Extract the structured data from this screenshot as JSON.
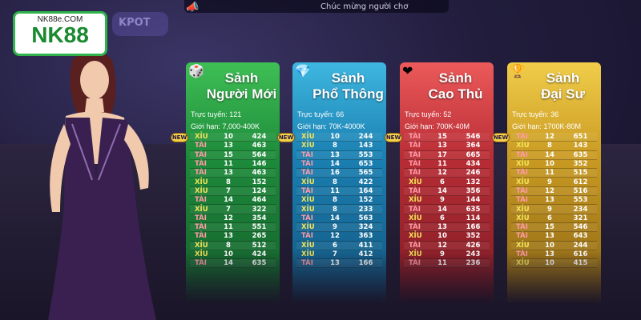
{
  "logo": {
    "domain": "NK88e.COM",
    "brand": "NK88"
  },
  "jackpot_sign": "KPOT",
  "announcement": "Chúc mừng người chơ",
  "online_label": "Trực tuyến:",
  "limit_label": "Giới hạn:",
  "new_badge": "NEW",
  "lobbies": [
    {
      "title_line1": "Sảnh",
      "title_line2": "Người Mới",
      "online": "121",
      "limit": "7,000-400K",
      "color": "#2da94a",
      "emblem": "dice-icon",
      "rows": [
        [
          "XỈU",
          "10",
          "424"
        ],
        [
          "TÀI",
          "13",
          "463"
        ],
        [
          "TÀI",
          "15",
          "564"
        ],
        [
          "TÀI",
          "11",
          "146"
        ],
        [
          "TÀI",
          "13",
          "463"
        ],
        [
          "XỈU",
          "8",
          "152"
        ],
        [
          "XỈU",
          "7",
          "124"
        ],
        [
          "TÀI",
          "14",
          "464"
        ],
        [
          "XỈU",
          "7",
          "322"
        ],
        [
          "TÀI",
          "12",
          "354"
        ],
        [
          "TÀI",
          "11",
          "551"
        ],
        [
          "TÀI",
          "13",
          "265"
        ],
        [
          "XỈU",
          "8",
          "512"
        ],
        [
          "XỈU",
          "10",
          "424"
        ],
        [
          "TÀI",
          "14",
          "635"
        ]
      ]
    },
    {
      "title_line1": "Sảnh",
      "title_line2": "Phổ Thông",
      "online": "66",
      "limit": "70K-4000K",
      "color": "#1f8cc0",
      "emblem": "gem-icon",
      "rows": [
        [
          "XỈU",
          "10",
          "244"
        ],
        [
          "XỈU",
          "8",
          "143"
        ],
        [
          "TÀI",
          "13",
          "553"
        ],
        [
          "TÀI",
          "14",
          "653"
        ],
        [
          "TÀI",
          "16",
          "565"
        ],
        [
          "XỈU",
          "8",
          "422"
        ],
        [
          "TÀI",
          "11",
          "164"
        ],
        [
          "XỈU",
          "8",
          "152"
        ],
        [
          "XỈU",
          "8",
          "233"
        ],
        [
          "TÀI",
          "14",
          "563"
        ],
        [
          "XỈU",
          "9",
          "324"
        ],
        [
          "TÀI",
          "12",
          "363"
        ],
        [
          "XỈU",
          "6",
          "411"
        ],
        [
          "XỈU",
          "7",
          "412"
        ],
        [
          "TÀI",
          "13",
          "166"
        ]
      ]
    },
    {
      "title_line1": "Sảnh",
      "title_line2": "Cao Thủ",
      "online": "52",
      "limit": "700K-40M",
      "color": "#c2323b",
      "emblem": "heart-gift-icon",
      "rows": [
        [
          "TÀI",
          "15",
          "546"
        ],
        [
          "TÀI",
          "13",
          "364"
        ],
        [
          "TÀI",
          "17",
          "665"
        ],
        [
          "TÀI",
          "11",
          "434"
        ],
        [
          "TÀI",
          "12",
          "246"
        ],
        [
          "XỈU",
          "6",
          "132"
        ],
        [
          "TÀI",
          "14",
          "356"
        ],
        [
          "XỈU",
          "9",
          "144"
        ],
        [
          "TÀI",
          "14",
          "635"
        ],
        [
          "XỈU",
          "6",
          "114"
        ],
        [
          "TÀI",
          "13",
          "166"
        ],
        [
          "XỈU",
          "10",
          "352"
        ],
        [
          "TÀI",
          "12",
          "426"
        ],
        [
          "XỈU",
          "9",
          "243"
        ],
        [
          "TÀI",
          "11",
          "236"
        ]
      ]
    },
    {
      "title_line1": "Sảnh",
      "title_line2": "Đại Sư",
      "online": "36",
      "limit": "1700K-80M",
      "color": "#d4a52a",
      "emblem": "trophy-icon",
      "rows": [
        [
          "TÀI",
          "12",
          "651"
        ],
        [
          "XỈU",
          "8",
          "143"
        ],
        [
          "TÀI",
          "14",
          "635"
        ],
        [
          "XỈU",
          "10",
          "352"
        ],
        [
          "TÀI",
          "11",
          "515"
        ],
        [
          "XỈU",
          "9",
          "612"
        ],
        [
          "TÀI",
          "12",
          "516"
        ],
        [
          "TÀI",
          "13",
          "553"
        ],
        [
          "XỈU",
          "9",
          "234"
        ],
        [
          "XỈU",
          "6",
          "321"
        ],
        [
          "TÀI",
          "15",
          "546"
        ],
        [
          "TÀI",
          "13",
          "643"
        ],
        [
          "XỈU",
          "10",
          "244"
        ],
        [
          "TÀI",
          "13",
          "616"
        ],
        [
          "XỈU",
          "10",
          "415"
        ]
      ]
    }
  ]
}
